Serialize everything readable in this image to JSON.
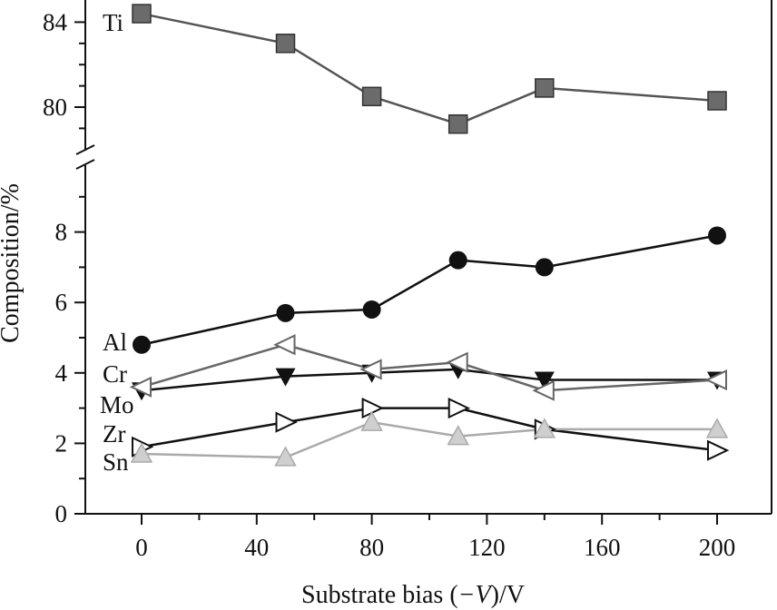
{
  "chart_data": {
    "type": "line",
    "xlabel_parts": [
      "Substrate bias (",
      "−V",
      ")/V"
    ],
    "ylabel": "Composition/%",
    "xlim": [
      -20,
      220
    ],
    "x_ticks": [
      0,
      40,
      80,
      120,
      160,
      200
    ],
    "y_ticks_lower": [
      0,
      2,
      4,
      6,
      8
    ],
    "y_ticks_upper": [
      80,
      84
    ],
    "ylim_lower": [
      0,
      9.5
    ],
    "ylim_upper": [
      78.5,
      84.5
    ],
    "axis_break": true,
    "x": [
      0,
      50,
      80,
      110,
      140,
      200
    ],
    "series": [
      {
        "name": "Ti",
        "marker": "square-gray",
        "line_color": "#555555",
        "values": [
          84.4,
          83.0,
          80.5,
          79.2,
          80.9,
          80.3
        ]
      },
      {
        "name": "Al",
        "marker": "circle-black",
        "line_color": "#111111",
        "values": [
          4.8,
          5.7,
          5.8,
          7.2,
          7.0,
          7.9
        ]
      },
      {
        "name": "Cr",
        "marker": "triangle-down-black",
        "line_color": "#111111",
        "values": [
          3.5,
          3.9,
          4.0,
          4.1,
          3.8,
          3.8
        ]
      },
      {
        "name": "Mo",
        "marker": "triangle-left-open",
        "line_color": "#666666",
        "values": [
          3.6,
          4.8,
          4.1,
          4.3,
          3.5,
          3.8
        ]
      },
      {
        "name": "Zr",
        "marker": "triangle-right-open",
        "line_color": "#111111",
        "values": [
          1.9,
          2.6,
          3.0,
          3.0,
          2.4,
          1.8
        ]
      },
      {
        "name": "Sn",
        "marker": "triangle-up-lightgray",
        "line_color": "#aaaaaa",
        "values": [
          1.7,
          1.6,
          2.6,
          2.2,
          2.4,
          2.4
        ]
      }
    ]
  }
}
